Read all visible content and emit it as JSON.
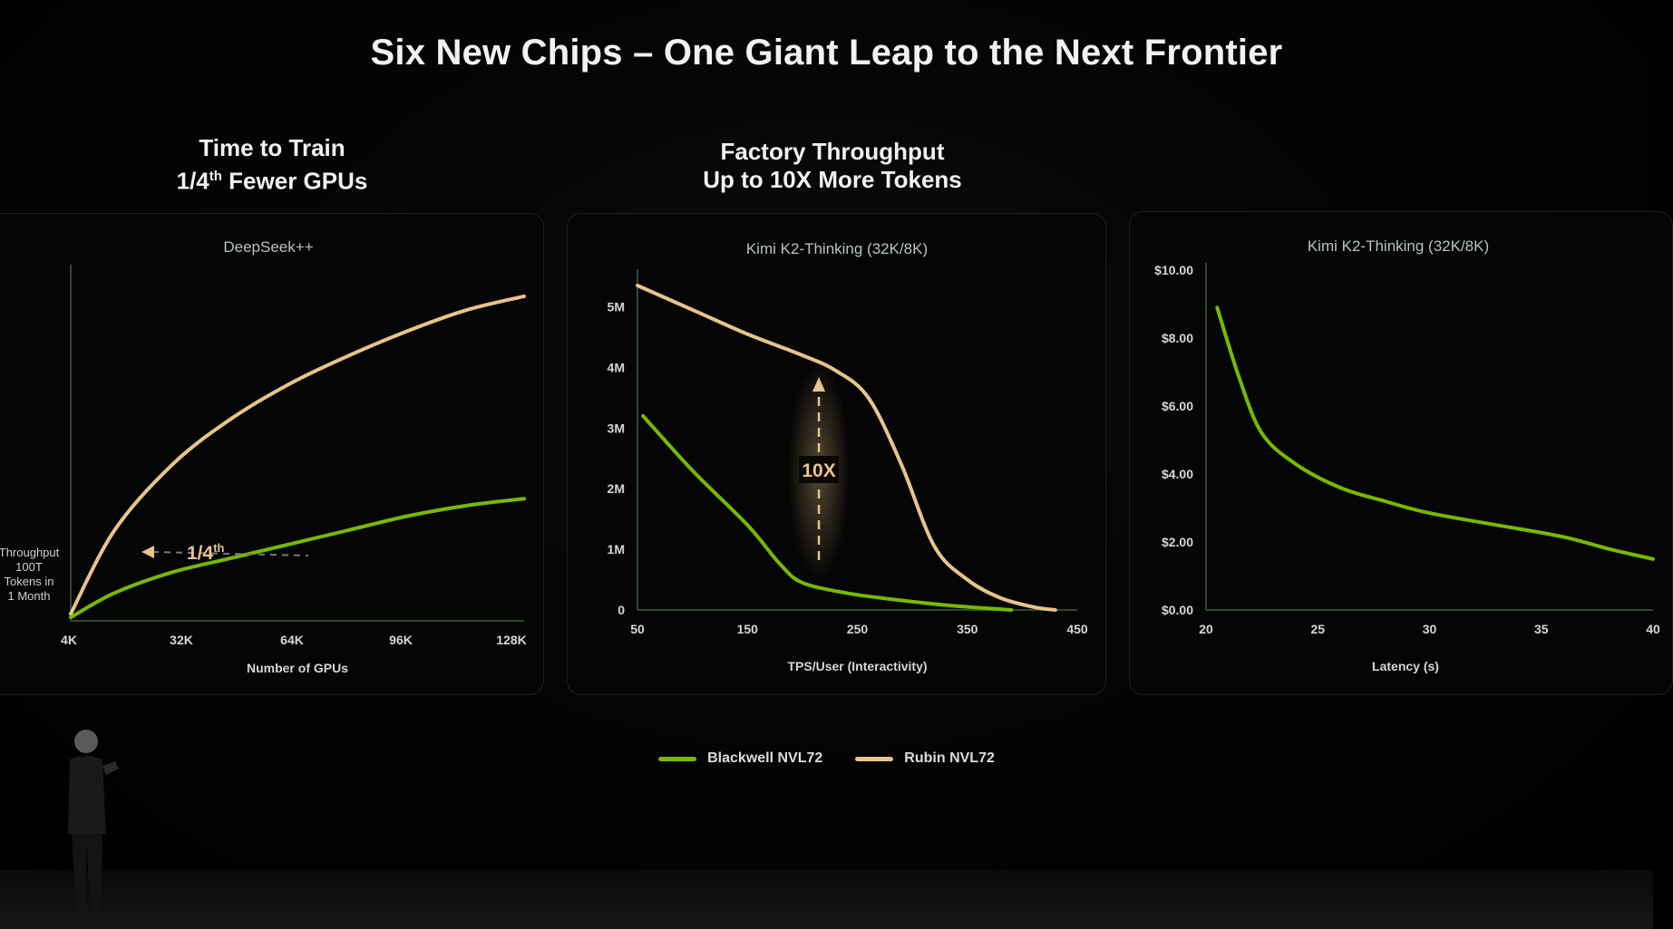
{
  "slide": {
    "title": "Six New Chips – One Giant Leap to the Next Frontier",
    "headings": [
      {
        "line1": "Time to Train",
        "line2_pre": "1/4",
        "line2_sup": "th",
        "line2_post": " Fewer GPUs"
      },
      {
        "line1": "Factory Throughput",
        "line2": "Up to 10X More Tokens"
      }
    ]
  },
  "legend": [
    {
      "label": "Blackwell NVL72",
      "color": "#76b900"
    },
    {
      "label": "Rubin NVL72",
      "color": "#e8c38a"
    }
  ],
  "colors": {
    "blackwell": "#76b900",
    "rubin": "#e8c38a",
    "axis": "#2f4a2f",
    "text": "#d6d6d6"
  },
  "chart_data": [
    {
      "type": "line",
      "title": "DeepSeek++",
      "xlabel": "Number of GPUs",
      "ylabel": "Throughput 100T Tokens in 1 Month",
      "ylabel_lines": [
        "Throughput",
        "100T",
        "Tokens in",
        "1 Month"
      ],
      "x_ticks": [
        "4K",
        "32K",
        "64K",
        "96K",
        "128K"
      ],
      "xlim": [
        4,
        128
      ],
      "ylim": [
        0,
        1
      ],
      "annotation": {
        "text_pre": "1/4",
        "text_sup": "th"
      },
      "series": [
        {
          "name": "Rubin NVL72",
          "x": [
            4,
            16,
            32,
            48,
            64,
            80,
            96,
            112,
            128
          ],
          "y": [
            0.02,
            0.26,
            0.45,
            0.58,
            0.68,
            0.76,
            0.83,
            0.89,
            0.93
          ]
        },
        {
          "name": "Blackwell NVL72",
          "x": [
            4,
            16,
            32,
            48,
            64,
            80,
            96,
            112,
            128
          ],
          "y": [
            0.01,
            0.08,
            0.14,
            0.18,
            0.22,
            0.26,
            0.3,
            0.33,
            0.35
          ]
        }
      ]
    },
    {
      "type": "line",
      "title": "Kimi K2-Thinking (32K/8K)",
      "xlabel": "TPS/User (Interactivity)",
      "x_ticks": [
        "50",
        "150",
        "250",
        "350",
        "450"
      ],
      "y_ticks": [
        "0",
        "1M",
        "2M",
        "3M",
        "4M",
        "5M"
      ],
      "xlim": [
        50,
        450
      ],
      "ylim": [
        0,
        5.5
      ],
      "annotation": {
        "text": "10X",
        "x": 215
      },
      "series": [
        {
          "name": "Rubin NVL72",
          "x": [
            50,
            100,
            150,
            200,
            230,
            260,
            290,
            320,
            350,
            380,
            410,
            430
          ],
          "y": [
            5.35,
            4.95,
            4.55,
            4.2,
            3.95,
            3.5,
            2.4,
            1.05,
            0.5,
            0.2,
            0.05,
            0.0
          ]
        },
        {
          "name": "Blackwell NVL72",
          "x": [
            55,
            100,
            150,
            180,
            200,
            240,
            280,
            330,
            390
          ],
          "y": [
            3.2,
            2.3,
            1.4,
            0.75,
            0.45,
            0.28,
            0.18,
            0.08,
            0.0
          ]
        }
      ]
    },
    {
      "type": "line",
      "title": "Kimi K2-Thinking (32K/8K)",
      "xlabel": "Latency (s)",
      "x_ticks": [
        "20",
        "25",
        "30",
        "35",
        "40"
      ],
      "y_ticks": [
        "$0.00",
        "$2.00",
        "$4.00",
        "$6.00",
        "$8.00",
        "$10.00"
      ],
      "xlim": [
        20,
        40
      ],
      "ylim": [
        0,
        10
      ],
      "series": [
        {
          "name": "Blackwell NVL72",
          "x": [
            20.5,
            21.5,
            22.5,
            24,
            26,
            28,
            30,
            33,
            36,
            38,
            40
          ],
          "y": [
            8.9,
            6.8,
            5.2,
            4.3,
            3.6,
            3.2,
            2.85,
            2.5,
            2.15,
            1.8,
            1.5
          ]
        }
      ]
    }
  ]
}
